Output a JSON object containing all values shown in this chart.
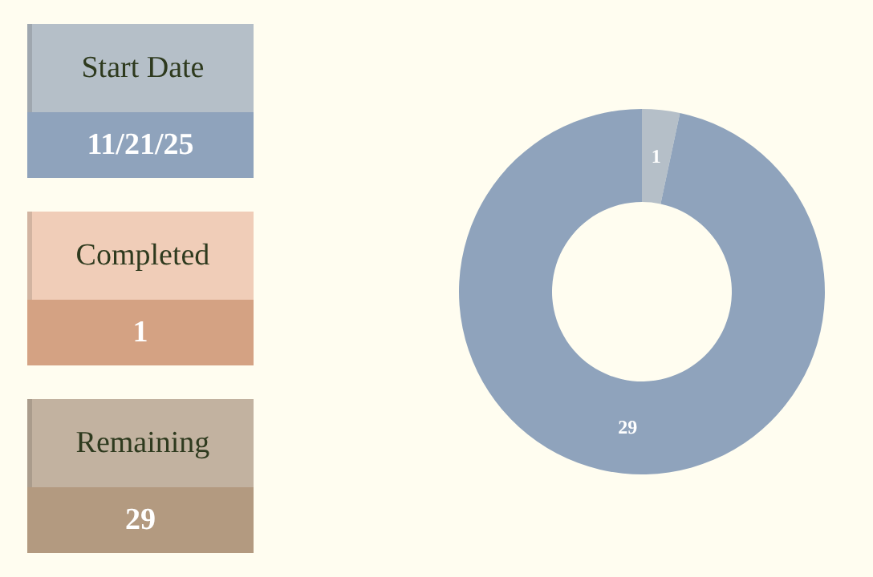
{
  "chart_data": [
    {
      "type": "other",
      "annotations": [
        "Start Date",
        "11/21/25",
        "Completed",
        "1",
        "Remaining",
        "29"
      ]
    },
    {
      "type": "donut",
      "categories": [
        null,
        null
      ],
      "values": [
        1,
        29
      ],
      "colors": [
        "#b5bfc8",
        "#8fa3bc"
      ],
      "data_labels": true
    }
  ]
}
